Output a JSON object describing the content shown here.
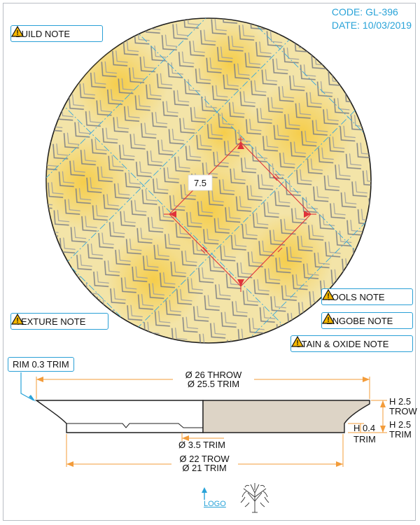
{
  "header": {
    "code": "CODE: GL-396",
    "date": "DATE: 10/03/2019"
  },
  "notes": {
    "build": "BUILD NOTE",
    "texture": "TEXTURE NOTE",
    "tools": "TOOLS NOTE",
    "engobe": "ENGOBE NOTE",
    "stain": "STAIN & OXIDE NOTE"
  },
  "plan_view": {
    "diamond_size": "7.5"
  },
  "section_view": {
    "rim_label": "RIM 0.3 TRIM",
    "outer_throw": "Ø 26 THROW",
    "outer_trim": "Ø 25.5 TRIM",
    "height_trow_1": "H 2.5",
    "height_trow_2": "TROW",
    "height_trim_1": "H 2.5",
    "height_trim_2": "TRIM",
    "foot_h_1": "H 0.4",
    "foot_h_2": "TRIM",
    "foot_inner": "Ø 3.5 TRIM",
    "foot_outer_throw": "Ø 22 TROW",
    "foot_outer_trim": "Ø 21 TRIM"
  },
  "footer": {
    "logo_label": "LOGO"
  },
  "colors": {
    "accent": "#29a3d8",
    "dimension": "#f39c3a",
    "plate": "#f6d878",
    "glaze_line": "#7d8086",
    "section": "#ddd4c6",
    "callout": "#e0323a"
  },
  "icons": [
    "warning-icon",
    "logo-tree-icon",
    "arrow-up-icon"
  ]
}
